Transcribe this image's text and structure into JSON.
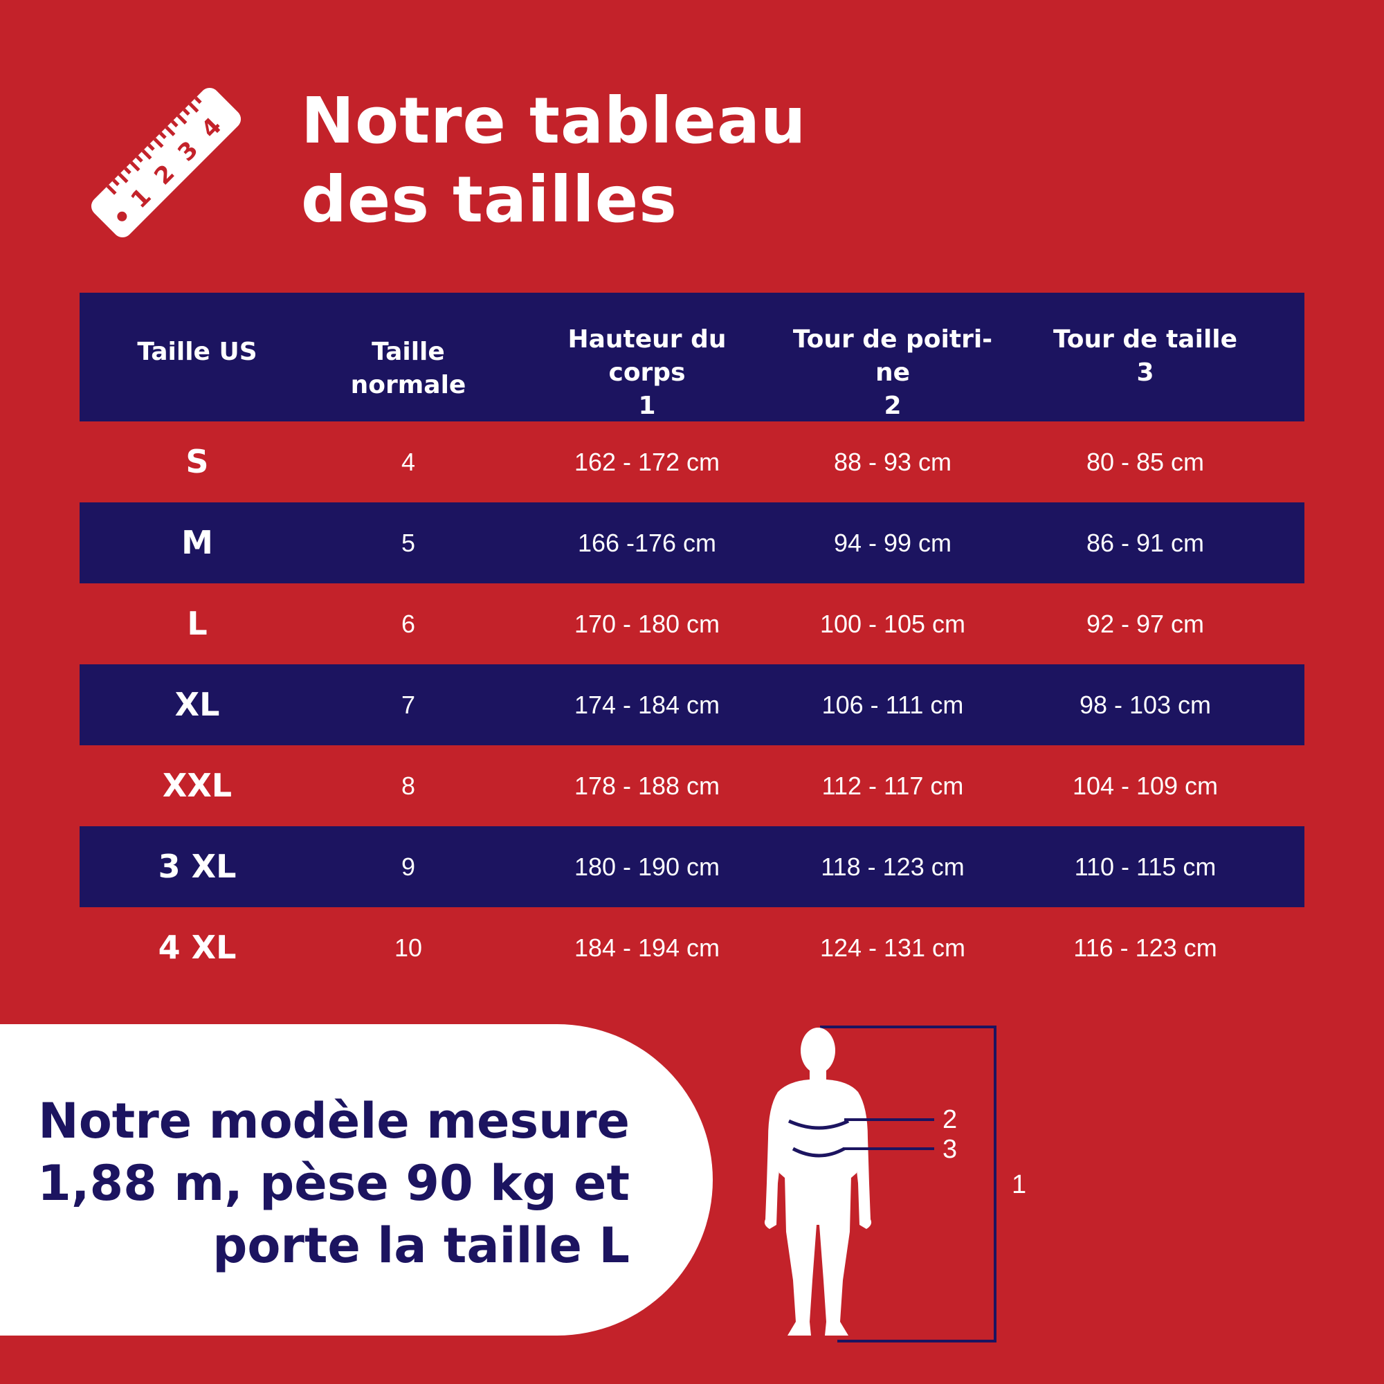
{
  "header": {
    "title_line1": "Notre tableau",
    "title_line2": "des tailles",
    "ruler_icon": "ruler-icon",
    "ruler_numbers": [
      "1",
      "2",
      "3",
      "4"
    ]
  },
  "table": {
    "columns": [
      "Taille US",
      "Taille normale",
      "Hauteur du\ncorps\n1",
      "Tour de poitri-\nne\n2",
      "Tour de taille\n3"
    ],
    "rows": [
      [
        "S",
        "4",
        "162 - 172 cm",
        "88 - 93 cm",
        "80 - 85 cm"
      ],
      [
        "M",
        "5",
        "166 -176 cm",
        "94 - 99 cm",
        "86 - 91 cm"
      ],
      [
        "L",
        "6",
        "170 - 180 cm",
        "100 - 105 cm",
        "92 - 97 cm"
      ],
      [
        "XL",
        "7",
        "174 - 184 cm",
        "106 - 111 cm",
        "98 - 103 cm"
      ],
      [
        "XXL",
        "8",
        "178 - 188 cm",
        "112 - 117 cm",
        "104 - 109 cm"
      ],
      [
        "3 XL",
        "9",
        "180 - 190 cm",
        "118 - 123 cm",
        "110 - 115 cm"
      ],
      [
        "4 XL",
        "10",
        "184 - 194 cm",
        "124 - 131 cm",
        "116 - 123 cm"
      ]
    ]
  },
  "model": {
    "line1": "Notre modèle mesure",
    "line2": "1,88 m, pèse 90 kg et",
    "line3": "porte la taille L"
  },
  "figure": {
    "icon": "body-silhouette-icon",
    "label_height": "1",
    "label_chest": "2",
    "label_waist": "3"
  },
  "colors": {
    "background": "#c3222a",
    "navy": "#1c1460",
    "white": "#ffffff"
  }
}
